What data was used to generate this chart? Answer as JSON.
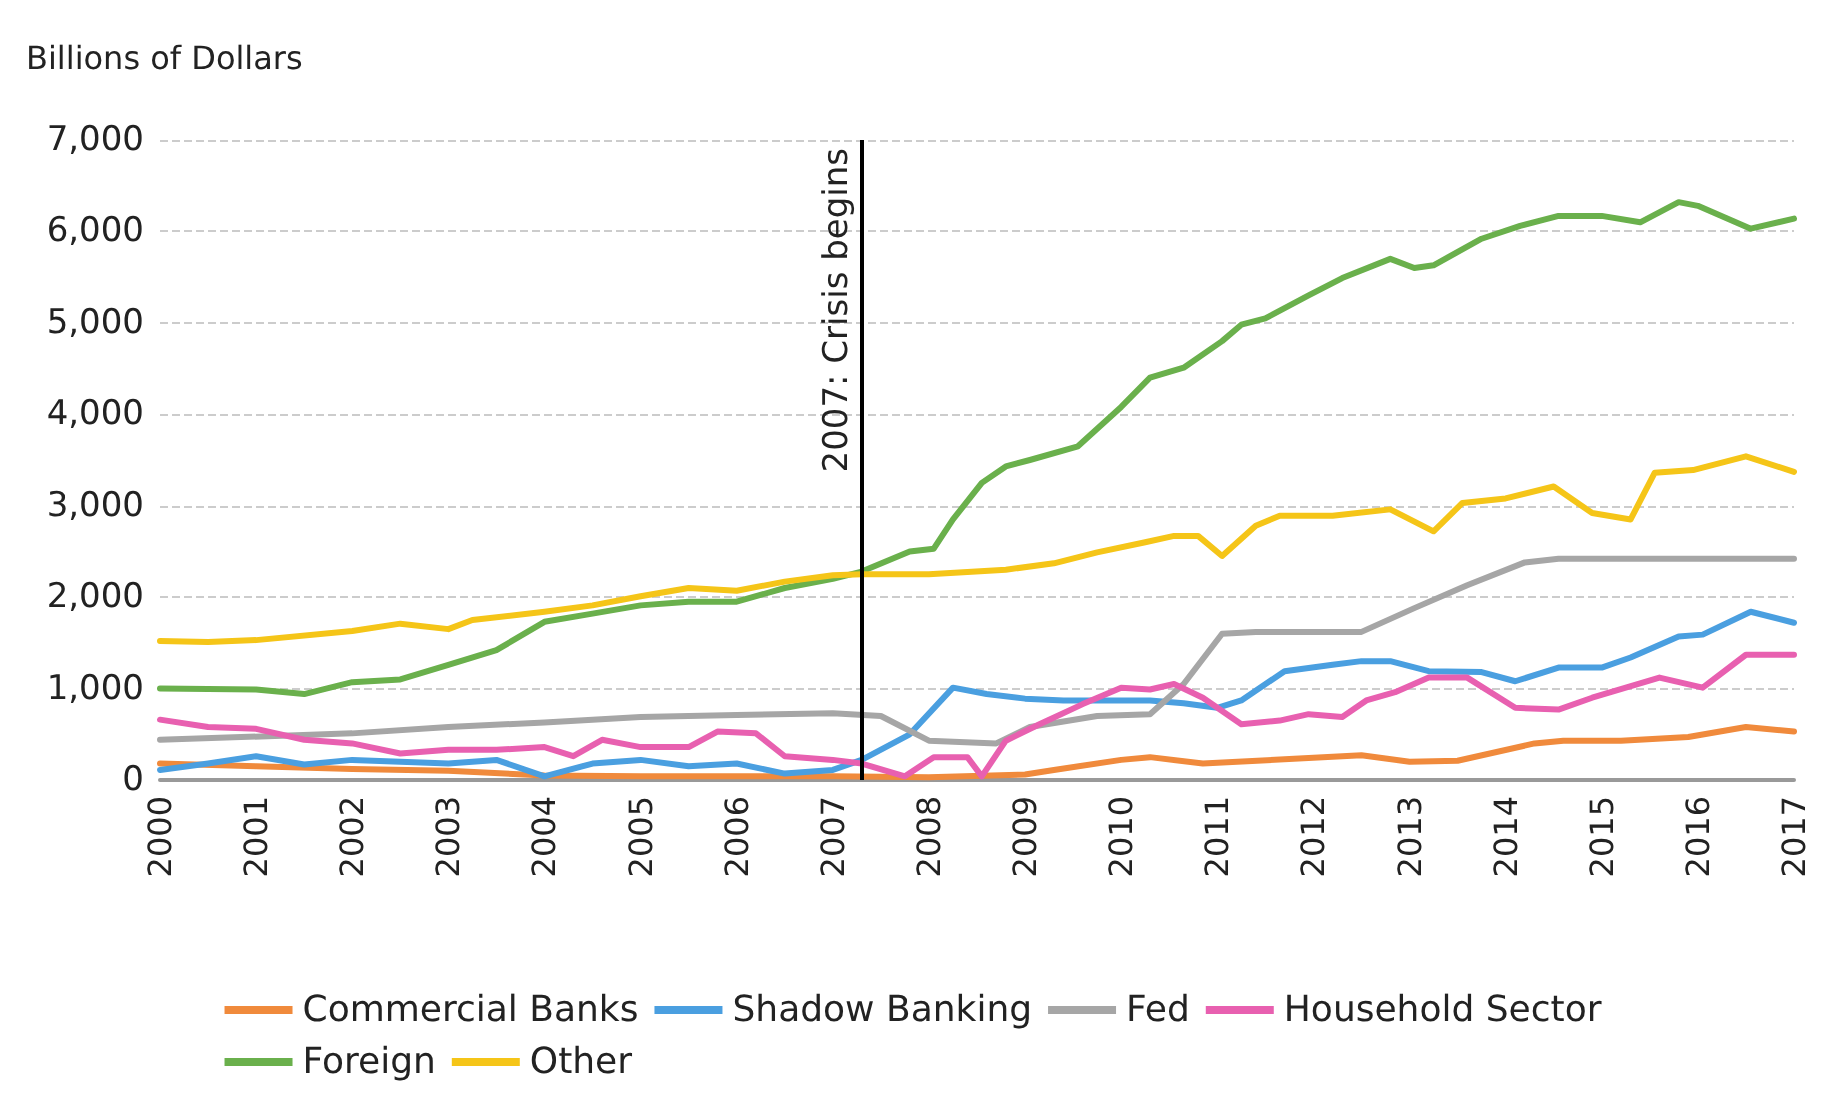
{
  "chart_data": {
    "type": "line",
    "ylabel": "Billions of Dollars",
    "xlim": [
      2000,
      2017
    ],
    "xticks": [
      2000,
      2001,
      2002,
      2003,
      2004,
      2005,
      2006,
      2007,
      2008,
      2009,
      2010,
      2011,
      2012,
      2013,
      2014,
      2015,
      2016,
      2017
    ],
    "ylim": [
      0,
      7000
    ],
    "yticks": [
      {
        "value": 0,
        "label": "0"
      },
      {
        "value": 1000,
        "label": "1,000"
      },
      {
        "value": 2000,
        "label": "2,000"
      },
      {
        "value": 3000,
        "label": "3,000"
      },
      {
        "value": 4000,
        "label": "4,000"
      },
      {
        "value": 5000,
        "label": "5,000"
      },
      {
        "value": 6000,
        "label": "6,000"
      },
      {
        "value": 7000,
        "label": "7,000"
      }
    ],
    "grid": "y",
    "legend": "bottom",
    "marker": "none",
    "line_style": "solid",
    "ref_lines": [
      {
        "axis": "x",
        "value": 2007.3,
        "label": "2007: Crisis begins",
        "color": "#000000"
      }
    ],
    "series": [
      {
        "name": "Commercial Banks",
        "color": "#f08a3c",
        "x": [
          2000,
          2001,
          2002,
          2003,
          2004,
          2005,
          2006,
          2007,
          2008,
          2009,
          2009.3,
          2010,
          2010.3,
          2010.85,
          2012.5,
          2013,
          2013.5,
          2014.3,
          2014.6,
          2015.2,
          2015.9,
          2016.5,
          2017
        ],
        "values": [
          180,
          150,
          120,
          100,
          50,
          40,
          40,
          40,
          30,
          60,
          110,
          220,
          250,
          180,
          270,
          200,
          210,
          400,
          430,
          430,
          470,
          580,
          530
        ]
      },
      {
        "name": "Shadow Banking",
        "color": "#4a9fe0",
        "x": [
          2000,
          2000.5,
          2001,
          2001.5,
          2002,
          2003,
          2003.5,
          2004,
          2004.5,
          2005,
          2005.5,
          2006,
          2006.5,
          2007,
          2007.3,
          2007.8,
          2008.25,
          2008.6,
          2009,
          2009.4,
          2010.3,
          2010.65,
          2011,
          2011.25,
          2011.7,
          2012.2,
          2012.5,
          2012.8,
          2013.2,
          2013.75,
          2014.1,
          2014.55,
          2015,
          2015.3,
          2015.8,
          2016.05,
          2016.55,
          2017
        ],
        "values": [
          110,
          180,
          260,
          170,
          220,
          180,
          220,
          40,
          180,
          220,
          150,
          180,
          70,
          110,
          220,
          500,
          1010,
          940,
          890,
          870,
          870,
          840,
          790,
          870,
          1190,
          1260,
          1300,
          1300,
          1190,
          1180,
          1080,
          1230,
          1230,
          1340,
          1570,
          1590,
          1840,
          1720
        ]
      },
      {
        "name": "Fed",
        "color": "#a6a6a6",
        "x": [
          2000,
          2002,
          2003,
          2004,
          2005,
          2006,
          2007,
          2007.5,
          2008,
          2008.7,
          2009.05,
          2009.75,
          2010.3,
          2010.65,
          2011.05,
          2011.4,
          2012.5,
          2013.05,
          2013.6,
          2014.2,
          2014.55,
          2017
        ],
        "values": [
          440,
          510,
          580,
          630,
          690,
          710,
          730,
          700,
          430,
          400,
          580,
          700,
          720,
          1050,
          1600,
          1620,
          1620,
          1880,
          2130,
          2380,
          2420,
          2420
        ]
      },
      {
        "name": "Household Sector",
        "color": "#e860b0",
        "x": [
          2000,
          2000.5,
          2001,
          2001.5,
          2002,
          2002.5,
          2003,
          2003.5,
          2004,
          2004.3,
          2004.6,
          2005,
          2005.5,
          2005.8,
          2006.2,
          2006.5,
          2007,
          2007.3,
          2007.75,
          2008.05,
          2008.4,
          2008.55,
          2008.8,
          2009.15,
          2009.6,
          2010,
          2010.3,
          2010.55,
          2010.85,
          2011.25,
          2011.65,
          2011.95,
          2012.3,
          2012.55,
          2012.85,
          2013.2,
          2013.6,
          2014.1,
          2014.55,
          2014.9,
          2015.25,
          2015.6,
          2016.05,
          2016.5,
          2017
        ],
        "values": [
          660,
          580,
          560,
          440,
          400,
          290,
          330,
          330,
          360,
          260,
          440,
          360,
          360,
          530,
          510,
          260,
          220,
          180,
          40,
          250,
          250,
          40,
          430,
          610,
          830,
          1010,
          990,
          1050,
          900,
          610,
          650,
          720,
          690,
          870,
          960,
          1120,
          1120,
          790,
          770,
          900,
          1010,
          1120,
          1010,
          1370,
          1370
        ]
      },
      {
        "name": "Foreign",
        "color": "#6ab04c",
        "x": [
          2000,
          2001,
          2001.5,
          2002,
          2002.5,
          2003,
          2003.5,
          2004,
          2004.5,
          2005,
          2005.5,
          2006,
          2006.5,
          2007,
          2007.3,
          2007.8,
          2008.05,
          2008.25,
          2008.55,
          2008.8,
          2009.05,
          2009.55,
          2010,
          2010.3,
          2010.65,
          2011.05,
          2011.25,
          2011.5,
          2011.95,
          2012.3,
          2012.8,
          2013.05,
          2013.25,
          2013.75,
          2014.15,
          2014.55,
          2015,
          2015.4,
          2015.8,
          2016,
          2016.55,
          2017
        ],
        "values": [
          1000,
          990,
          940,
          1070,
          1100,
          1260,
          1420,
          1730,
          1820,
          1910,
          1950,
          1950,
          2100,
          2200,
          2280,
          2500,
          2530,
          2850,
          3250,
          3430,
          3500,
          3650,
          4080,
          4400,
          4510,
          4800,
          4980,
          5050,
          5300,
          5490,
          5700,
          5600,
          5630,
          5920,
          6060,
          6170,
          6170,
          6100,
          6320,
          6280,
          6030,
          6140
        ]
      },
      {
        "name": "Other",
        "color": "#f5c518",
        "x": [
          2000,
          2000.5,
          2001,
          2002,
          2002.5,
          2003,
          2003.25,
          2004,
          2004.5,
          2005,
          2005.5,
          2006,
          2006.5,
          2007,
          2007.3,
          2008,
          2008.8,
          2009.3,
          2009.75,
          2010.25,
          2010.55,
          2010.8,
          2011.05,
          2011.4,
          2011.65,
          2012.2,
          2012.8,
          2013.25,
          2013.55,
          2014,
          2014.5,
          2014.9,
          2015.3,
          2015.55,
          2015.95,
          2016.5,
          2017
        ],
        "values": [
          1520,
          1510,
          1530,
          1630,
          1710,
          1650,
          1750,
          1840,
          1910,
          2010,
          2100,
          2070,
          2170,
          2240,
          2250,
          2250,
          2300,
          2370,
          2490,
          2600,
          2670,
          2670,
          2450,
          2780,
          2890,
          2890,
          2960,
          2720,
          3030,
          3080,
          3210,
          2920,
          2850,
          3360,
          3390,
          3540,
          3370
        ]
      }
    ]
  }
}
